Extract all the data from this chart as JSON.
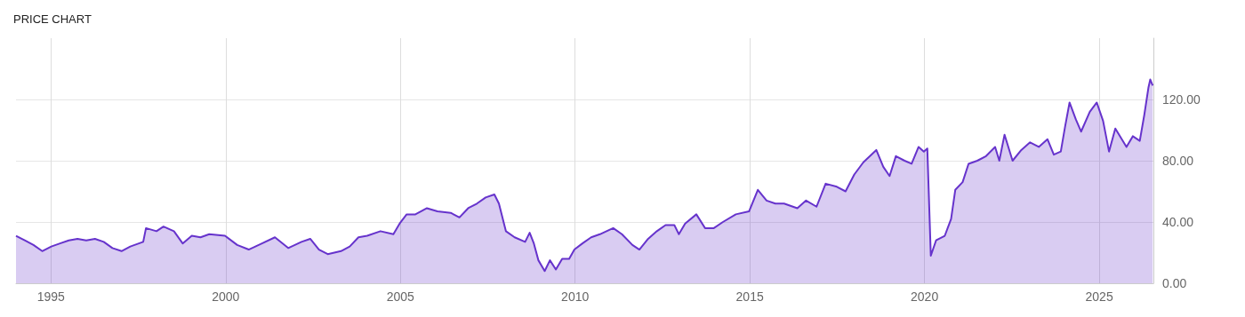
{
  "chart_data": {
    "type": "area",
    "title": "PRICE CHART",
    "x": [
      1994.0,
      1994.25,
      1994.5,
      1994.75,
      1995.01,
      1995.26,
      1995.51,
      1995.76,
      1996.01,
      1996.26,
      1996.51,
      1996.76,
      1997.02,
      1997.27,
      1997.64,
      1997.72,
      1998.02,
      1998.22,
      1998.52,
      1998.77,
      1999.03,
      1999.28,
      1999.53,
      1999.98,
      2000.33,
      2000.66,
      2001.04,
      2001.41,
      2001.79,
      2002.17,
      2002.42,
      2002.67,
      2002.92,
      2003.3,
      2003.55,
      2003.8,
      2004.05,
      2004.43,
      2004.8,
      2004.98,
      2005.18,
      2005.43,
      2005.76,
      2006.06,
      2006.44,
      2006.69,
      2006.94,
      2007.19,
      2007.44,
      2007.69,
      2007.82,
      2008.02,
      2008.27,
      2008.57,
      2008.7,
      2008.82,
      2008.95,
      2009.13,
      2009.28,
      2009.45,
      2009.63,
      2009.83,
      2009.98,
      2010.21,
      2010.46,
      2010.71,
      2011.09,
      2011.34,
      2011.64,
      2011.84,
      2012.09,
      2012.34,
      2012.59,
      2012.84,
      2012.97,
      2013.15,
      2013.47,
      2013.72,
      2013.97,
      2014.23,
      2014.6,
      2014.98,
      2015.23,
      2015.48,
      2015.73,
      2015.98,
      2016.36,
      2016.61,
      2016.91,
      2017.17,
      2017.49,
      2017.74,
      2017.99,
      2018.25,
      2018.62,
      2018.82,
      2019.0,
      2019.18,
      2019.43,
      2019.63,
      2019.83,
      2019.98,
      2020.08,
      2020.18,
      2020.33,
      2020.58,
      2020.76,
      2020.88,
      2021.09,
      2021.26,
      2021.51,
      2021.76,
      2022.02,
      2022.14,
      2022.29,
      2022.52,
      2022.77,
      2023.02,
      2023.27,
      2023.52,
      2023.7,
      2023.9,
      2024.02,
      2024.15,
      2024.33,
      2024.48,
      2024.73,
      2024.93,
      2025.11,
      2025.28,
      2025.46,
      2025.78,
      2025.96,
      2026.16,
      2026.29,
      2026.41,
      2026.46,
      2026.53
    ],
    "series": [
      {
        "color": "#6633cc",
        "values": [
          31,
          28,
          25,
          21,
          24,
          26,
          28,
          29,
          28,
          29,
          27,
          23,
          21,
          24,
          27,
          36,
          34,
          37,
          34,
          26,
          31,
          30,
          32,
          31,
          25,
          22,
          26,
          30,
          23,
          27,
          29,
          22,
          19,
          21,
          24,
          30,
          31,
          34,
          32,
          39,
          45,
          45,
          49,
          47,
          46,
          43,
          49,
          52,
          56,
          58,
          52,
          34,
          30,
          27,
          33,
          26,
          15,
          8,
          15,
          9,
          16,
          16,
          22,
          26,
          30,
          32,
          36,
          32,
          25,
          22,
          29,
          34,
          38,
          38,
          32,
          39,
          45,
          36,
          36,
          40,
          45,
          47,
          61,
          54,
          52,
          52,
          49,
          54,
          50,
          65,
          63,
          60,
          71,
          79,
          87,
          76,
          70,
          83,
          80,
          78,
          89,
          86,
          88,
          18,
          28,
          31,
          42,
          61,
          66,
          78,
          80,
          83,
          89,
          80,
          97,
          80,
          87,
          92,
          89,
          94,
          84,
          86,
          102,
          118,
          107,
          99,
          112,
          118,
          106,
          86,
          101,
          89,
          96,
          93,
          110,
          128,
          133,
          129
        ]
      }
    ],
    "xlim": [
      1994,
      2026.55
    ],
    "xticks": [
      1995,
      2000,
      2005,
      2010,
      2015,
      2020,
      2025
    ],
    "ylim": [
      0,
      160
    ],
    "yticks": [
      {
        "value": 0,
        "label": "0.00"
      },
      {
        "value": 40,
        "label": "40.00"
      },
      {
        "value": 80,
        "label": "80.00"
      },
      {
        "value": 120,
        "label": "120.00"
      }
    ],
    "grid": true
  }
}
